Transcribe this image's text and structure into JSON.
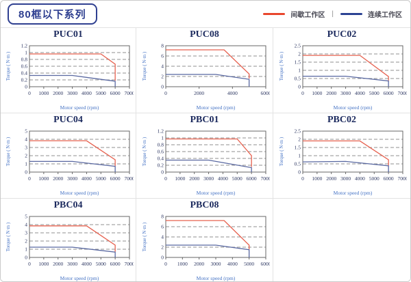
{
  "header": {
    "series_title": "80框以下系列",
    "legend_separator": "|",
    "legend": [
      {
        "label": "间歇工作区",
        "color": "#e8462c"
      },
      {
        "label": "连续工作区",
        "color": "#2b4293"
      }
    ]
  },
  "chart_defaults": {
    "xlabel": "Motor speed (rpm)",
    "ylabel": "Torque ( N·m )",
    "red_line_color": "#e6604e",
    "blue_line_color": "#5867a0",
    "grid_color": "#8f8f8f",
    "frame_color": "#666666",
    "tick_label_color": "#2b3560",
    "axis_label_color": "#4472c4",
    "legend_series": [
      "间歇工作区",
      "连续工作区"
    ]
  },
  "chart_data": [
    {
      "type": "line",
      "title": "PUC01",
      "xlim": [
        0,
        7000
      ],
      "ylim": [
        0,
        1.2
      ],
      "xticks": [
        0,
        1000,
        2000,
        3000,
        4000,
        5000,
        6000,
        7000
      ],
      "yticks": [
        0,
        0.2,
        0.4,
        0.6,
        0.8,
        1,
        1.2
      ],
      "series": [
        {
          "name": "间歇工作区",
          "points": [
            [
              0,
              0.96
            ],
            [
              5000,
              0.96
            ],
            [
              6000,
              0.66
            ],
            [
              6000,
              0.18
            ]
          ]
        },
        {
          "name": "连续工作区",
          "points": [
            [
              0,
              0.33
            ],
            [
              3000,
              0.33
            ],
            [
              6000,
              0.16
            ],
            [
              6000,
              0
            ]
          ]
        }
      ]
    },
    {
      "type": "line",
      "title": "PUC08",
      "xlim": [
        0,
        6000
      ],
      "ylim": [
        0,
        8
      ],
      "xticks": [
        0,
        2000,
        4000,
        6000
      ],
      "yticks": [
        0,
        2,
        4,
        6,
        8
      ],
      "series": [
        {
          "name": "间歇工作区",
          "points": [
            [
              0,
              7.2
            ],
            [
              3500,
              7.2
            ],
            [
              5000,
              2.5
            ],
            [
              5000,
              1.6
            ]
          ]
        },
        {
          "name": "连续工作区",
          "points": [
            [
              0,
              2.4
            ],
            [
              3000,
              2.4
            ],
            [
              5000,
              1.45
            ],
            [
              5000,
              0
            ]
          ]
        }
      ]
    },
    {
      "type": "line",
      "title": "PUC02",
      "xlim": [
        0,
        7000
      ],
      "ylim": [
        0,
        2.5
      ],
      "xticks": [
        0,
        1000,
        2000,
        3000,
        4000,
        5000,
        6000,
        7000
      ],
      "yticks": [
        0,
        0.5,
        1,
        1.5,
        2,
        2.5
      ],
      "series": [
        {
          "name": "间歇工作区",
          "points": [
            [
              0,
              1.91
            ],
            [
              4000,
              1.91
            ],
            [
              6000,
              0.62
            ],
            [
              6000,
              0.38
            ]
          ]
        },
        {
          "name": "连续工作区",
          "points": [
            [
              0,
              0.64
            ],
            [
              3000,
              0.64
            ],
            [
              6000,
              0.35
            ],
            [
              6000,
              0
            ]
          ]
        }
      ]
    },
    {
      "type": "line",
      "title": "PUC04",
      "xlim": [
        0,
        7000
      ],
      "ylim": [
        0,
        5
      ],
      "xticks": [
        0,
        1000,
        2000,
        3000,
        4000,
        5000,
        6000,
        7000
      ],
      "yticks": [
        0,
        1,
        2,
        3,
        4,
        5
      ],
      "series": [
        {
          "name": "间歇工作区",
          "points": [
            [
              0,
              3.82
            ],
            [
              4000,
              3.82
            ],
            [
              6000,
              1.5
            ],
            [
              6000,
              0.75
            ]
          ]
        },
        {
          "name": "连续工作区",
          "points": [
            [
              0,
              1.3
            ],
            [
              3000,
              1.3
            ],
            [
              6000,
              0.7
            ],
            [
              6000,
              0
            ]
          ]
        }
      ]
    },
    {
      "type": "line",
      "title": "PBC01",
      "xlim": [
        0,
        7000
      ],
      "ylim": [
        0,
        1.2
      ],
      "xticks": [
        0,
        1000,
        2000,
        3000,
        4000,
        5000,
        6000,
        7000
      ],
      "yticks": [
        0,
        0.2,
        0.4,
        0.6,
        0.8,
        1,
        1.2
      ],
      "series": [
        {
          "name": "间歇工作区",
          "points": [
            [
              0,
              0.97
            ],
            [
              5000,
              0.97
            ],
            [
              6000,
              0.48
            ],
            [
              6000,
              0.15
            ]
          ]
        },
        {
          "name": "连续工作区",
          "points": [
            [
              0,
              0.35
            ],
            [
              3000,
              0.35
            ],
            [
              6000,
              0.13
            ],
            [
              6000,
              0
            ]
          ]
        }
      ]
    },
    {
      "type": "line",
      "title": "PBC02",
      "xlim": [
        0,
        7000
      ],
      "ylim": [
        0,
        2.5
      ],
      "xticks": [
        0,
        1000,
        2000,
        3000,
        4000,
        5000,
        6000,
        7000
      ],
      "yticks": [
        0,
        0.5,
        1,
        1.5,
        2,
        2.5
      ],
      "series": [
        {
          "name": "间歇工作区",
          "points": [
            [
              0,
              1.9
            ],
            [
              4000,
              1.9
            ],
            [
              6000,
              0.75
            ],
            [
              6000,
              0.4
            ]
          ]
        },
        {
          "name": "连续工作区",
          "points": [
            [
              0,
              0.62
            ],
            [
              3000,
              0.65
            ],
            [
              6000,
              0.38
            ],
            [
              6000,
              0
            ]
          ]
        }
      ]
    },
    {
      "type": "line",
      "title": "PBC04",
      "xlim": [
        0,
        7000
      ],
      "ylim": [
        0,
        5
      ],
      "xticks": [
        0,
        1000,
        2000,
        3000,
        4000,
        5000,
        6000,
        7000
      ],
      "yticks": [
        0,
        1,
        2,
        3,
        4,
        5
      ],
      "series": [
        {
          "name": "间歇工作区",
          "points": [
            [
              0,
              3.85
            ],
            [
              4000,
              3.85
            ],
            [
              6000,
              1.5
            ],
            [
              6000,
              0.7
            ]
          ]
        },
        {
          "name": "连续工作区",
          "points": [
            [
              0,
              1.25
            ],
            [
              3000,
              1.25
            ],
            [
              6000,
              0.65
            ],
            [
              6000,
              0
            ]
          ]
        }
      ]
    },
    {
      "type": "line",
      "title": "PBC08",
      "xlim": [
        0,
        6000
      ],
      "ylim": [
        0,
        8
      ],
      "xticks": [
        0,
        1000,
        2000,
        3000,
        4000,
        5000,
        6000
      ],
      "yticks": [
        0,
        2,
        4,
        6,
        8
      ],
      "series": [
        {
          "name": "间歇工作区",
          "points": [
            [
              0,
              7.2
            ],
            [
              3500,
              7.2
            ],
            [
              5000,
              2.4
            ],
            [
              5000,
              1.6
            ]
          ]
        },
        {
          "name": "连续工作区",
          "points": [
            [
              0,
              2.4
            ],
            [
              3000,
              2.4
            ],
            [
              5000,
              1.5
            ],
            [
              5000,
              0
            ]
          ]
        }
      ]
    }
  ],
  "layout_grid": [
    [
      0,
      1,
      2
    ],
    [
      3,
      4,
      5
    ],
    [
      6,
      7,
      -1
    ]
  ]
}
